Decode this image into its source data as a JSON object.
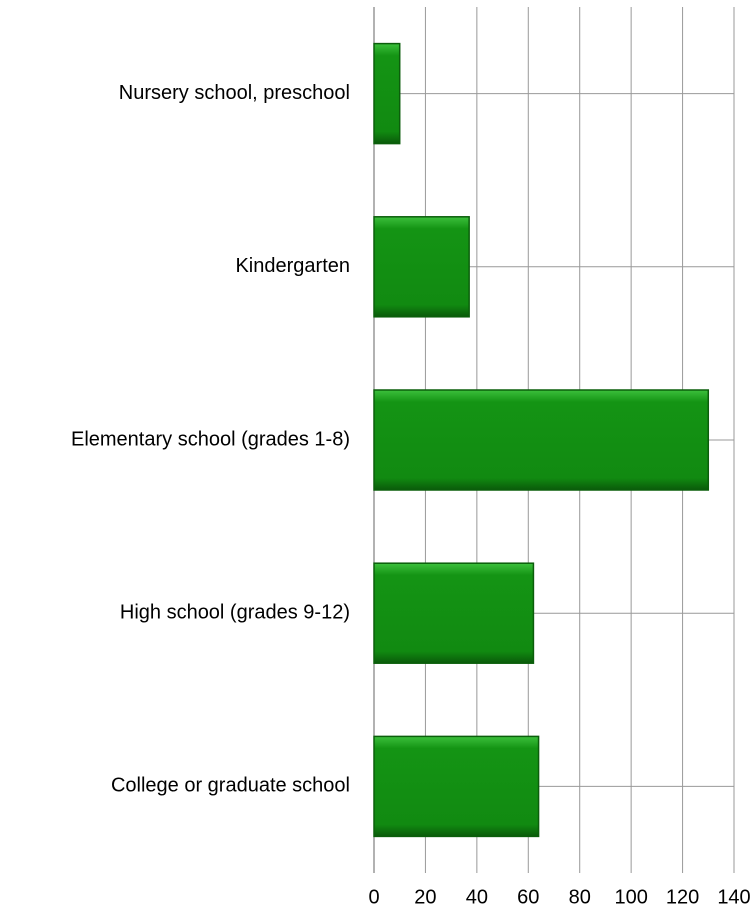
{
  "chart_data": {
    "type": "barh",
    "categories": [
      "Nursery school, preschool",
      "Kindergarten",
      "Elementary school (grades 1-8)",
      "High school (grades 9-12)",
      "College or graduate school"
    ],
    "values": [
      10,
      37,
      130,
      62,
      64
    ],
    "color": "#149414",
    "xlim": [
      0,
      140
    ],
    "xticks": [
      0,
      20,
      40,
      60,
      80,
      100,
      120,
      140
    ],
    "grid": true
  }
}
